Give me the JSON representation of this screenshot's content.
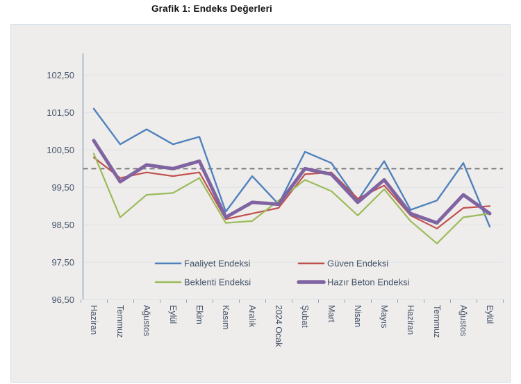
{
  "title": "Grafik 1: Endeks Değerleri",
  "chart_data": {
    "type": "line",
    "title": "Grafik 1: Endeks Değerleri",
    "categories": [
      "Haziran",
      "Temmuz",
      "Ağustos",
      "Eylül",
      "Ekim",
      "Kasım",
      "Aralık",
      "2024 Ocak",
      "Şubat",
      "Mart",
      "Nisan",
      "Mayıs",
      "Haziran",
      "Temmuz",
      "Ağustos",
      "Eylül"
    ],
    "series": [
      {
        "name": "Faaliyet Endeksi",
        "color": "#4f81bd",
        "width": 2.4,
        "values": [
          101.6,
          100.65,
          101.05,
          100.65,
          100.85,
          98.85,
          99.8,
          99.05,
          100.45,
          100.15,
          99.15,
          100.2,
          98.9,
          99.15,
          100.15,
          98.45
        ]
      },
      {
        "name": "Güven Endeksi",
        "color": "#c0504d",
        "width": 2.2,
        "values": [
          100.3,
          99.75,
          99.9,
          99.8,
          99.9,
          98.65,
          98.8,
          98.95,
          99.85,
          99.9,
          99.2,
          99.55,
          98.75,
          98.4,
          98.95,
          99.0
        ]
      },
      {
        "name": "Beklenti Endeksi",
        "color": "#9bbb59",
        "width": 2.2,
        "values": [
          100.4,
          98.7,
          99.3,
          99.35,
          99.75,
          98.55,
          98.6,
          99.15,
          99.7,
          99.4,
          98.75,
          99.45,
          98.6,
          98.0,
          98.7,
          98.8
        ]
      },
      {
        "name": "Hazır Beton Endeksi",
        "color": "#8064a2",
        "width": 5,
        "values": [
          100.75,
          99.65,
          100.1,
          100.0,
          100.2,
          98.7,
          99.1,
          99.05,
          100.0,
          99.85,
          99.1,
          99.7,
          98.8,
          98.55,
          99.3,
          98.8
        ]
      }
    ],
    "reference_line": {
      "value": 100.0,
      "color": "#7f7f7f",
      "style": "dashed"
    },
    "y_axis": {
      "tick_labels": [
        "102,50",
        "101,50",
        "100,50",
        "99,50",
        "98,50",
        "97,50",
        "96,50"
      ],
      "tick_values": [
        102.5,
        101.5,
        100.5,
        99.5,
        98.5,
        97.5,
        96.5
      ],
      "min": 96.5,
      "max": 103.0
    },
    "grid": true,
    "legend_position": "inside-bottom",
    "colors": {
      "panel_bg": "#efedeb",
      "gridline": "#dfe4e9",
      "axis": "#8ea3bb",
      "tick_text": "#44546a",
      "title_text": "#111111"
    }
  }
}
